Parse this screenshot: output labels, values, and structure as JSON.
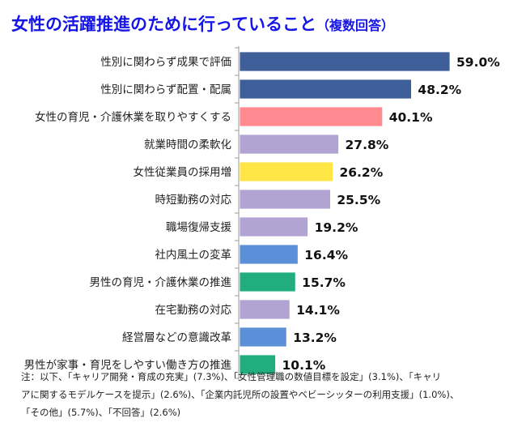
{
  "title": "女性の活躍推進のために行っていること",
  "subtitle": "（複数回答）",
  "chart_data": {
    "type": "bar",
    "orientation": "horizontal",
    "title": "女性の活躍推進のために行っていること（複数回答）",
    "categories": [
      "性別に関わらず成果で評価",
      "性別に関わらず配置・配属",
      "女性の育児・介護休業を取りやすくする",
      "就業時間の柔軟化",
      "女性従業員の採用増",
      "時短勤務の対応",
      "職場復帰支援",
      "社内風土の変革",
      "男性の育児・介護休業の推進",
      "在宅勤務の対応",
      "経営層などの意識改革",
      "男性が家事・育児をしやすい働き方の推進"
    ],
    "values": [
      59.0,
      48.2,
      40.1,
      27.8,
      26.2,
      25.5,
      19.2,
      16.4,
      15.7,
      14.1,
      13.2,
      10.1
    ],
    "value_labels": [
      "59.0%",
      "48.2%",
      "40.1%",
      "27.8%",
      "26.2%",
      "25.5%",
      "19.2%",
      "16.4%",
      "15.7%",
      "14.1%",
      "13.2%",
      "10.1%"
    ],
    "colors": [
      "#3f5f9a",
      "#3f5f9a",
      "#ff8a8f",
      "#b1a4d2",
      "#ffe545",
      "#b1a4d2",
      "#b1a4d2",
      "#5b90d8",
      "#21ad7d",
      "#b1a4d2",
      "#5b90d8",
      "#21ad7d"
    ],
    "xlim": [
      0,
      60
    ],
    "grid": false,
    "legend": "none"
  },
  "note": [
    "注：以下、「キャリア開発・育成の充実」(7.3%)、「女性管理職の数値目標を設定」(3.1%)、「キャリ",
    "アに関するモデルケースを提示」(2.6%)、「企業内託児所の設置やベビーシッターの利用支援」(1.0%)、",
    "「その他」(5.7%)、「不回答」(2.6%)"
  ]
}
